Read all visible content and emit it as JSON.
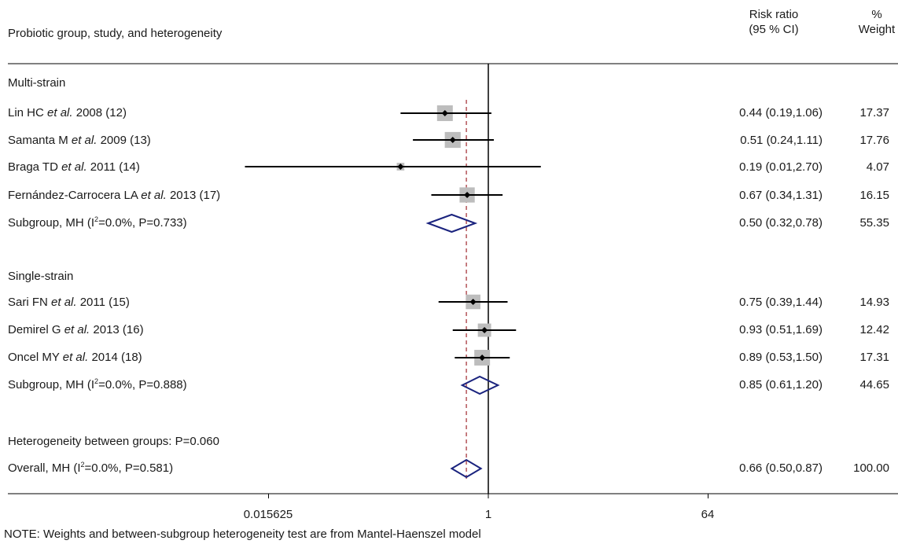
{
  "header": {
    "study_col": "Probiotic group, study, and heterogeneity",
    "rr_col_line1": "Risk ratio",
    "rr_col_line2": "(95 % CI)",
    "wt_col_line1": "%",
    "wt_col_line2": "Weight"
  },
  "groups": [
    {
      "title": "Multi-strain",
      "studies": [
        {
          "pre": "Lin HC ",
          "post": " 2008 (12)",
          "ci": "0.44 (0.19,1.06)",
          "weight": "17.37"
        },
        {
          "pre": "Samanta M ",
          "post": " 2009 (13)",
          "ci": "0.51 (0.24,1.11)",
          "weight": "17.76"
        },
        {
          "pre": "Braga TD ",
          "post": " 2011 (14)",
          "ci": "0.19 (0.01,2.70)",
          "weight": "4.07"
        },
        {
          "pre": "Fernández-Carrocera LA ",
          "post": " 2013 (17)",
          "ci": "0.67 (0.34,1.31)",
          "weight": "16.15"
        }
      ],
      "subgroup": {
        "pre": "Subgroup, MH (I",
        "post": "=0.0%, P=0.733)",
        "ci": "0.50 (0.32,0.78)",
        "weight": "55.35"
      }
    },
    {
      "title": "Single-strain",
      "studies": [
        {
          "pre": "Sari FN ",
          "post": " 2011 (15)",
          "ci": "0.75 (0.39,1.44)",
          "weight": "14.93"
        },
        {
          "pre": "Demirel G ",
          "post": " 2013 (16)",
          "ci": "0.93 (0.51,1.69)",
          "weight": "12.42"
        },
        {
          "pre": "Oncel MY ",
          "post": " 2014 (18)",
          "ci": "0.89 (0.53,1.50)",
          "weight": "17.31"
        }
      ],
      "subgroup": {
        "pre": "Subgroup, MH (I",
        "post": "=0.0%, P=0.888)",
        "ci": "0.85 (0.61,1.20)",
        "weight": "44.65"
      }
    }
  ],
  "etal": "et al.",
  "sup2": "2",
  "between": "Heterogeneity between groups: P=0.060",
  "overall": {
    "pre": "Overall, MH (I",
    "post": "=0.0%, P=0.581)",
    "ci": "0.66 (0.50,0.87)",
    "weight": "100.00"
  },
  "note": "NOTE: Weights and between-subgroup heterogeneity test are from Mantel-Haenszel model",
  "colors": {
    "axis": "#000000",
    "ci_line": "#000000",
    "weight_box": "#bdbdbd",
    "point": "#000000",
    "diamond": "#1a237e",
    "overall_line": "#a0282e"
  },
  "chart_data": {
    "type": "forest",
    "x_scale": "log",
    "xticks": [
      "0.015625",
      "1",
      "64"
    ],
    "xtick_values": [
      0.015625,
      1,
      64
    ],
    "null_line": 1,
    "overall_line": 0.66,
    "studies": [
      {
        "group": "Multi-strain",
        "rr": 0.44,
        "lo": 0.19,
        "hi": 1.06,
        "weight": 17.37
      },
      {
        "group": "Multi-strain",
        "rr": 0.51,
        "lo": 0.24,
        "hi": 1.11,
        "weight": 17.76
      },
      {
        "group": "Multi-strain",
        "rr": 0.19,
        "lo": 0.01,
        "hi": 2.7,
        "weight": 4.07
      },
      {
        "group": "Multi-strain",
        "rr": 0.67,
        "lo": 0.34,
        "hi": 1.31,
        "weight": 16.15
      },
      {
        "group": "Single-strain",
        "rr": 0.75,
        "lo": 0.39,
        "hi": 1.44,
        "weight": 14.93
      },
      {
        "group": "Single-strain",
        "rr": 0.93,
        "lo": 0.51,
        "hi": 1.69,
        "weight": 12.42
      },
      {
        "group": "Single-strain",
        "rr": 0.89,
        "lo": 0.53,
        "hi": 1.5,
        "weight": 17.31
      }
    ],
    "summaries": [
      {
        "label": "Subgroup Multi-strain",
        "rr": 0.5,
        "lo": 0.32,
        "hi": 0.78,
        "weight": 55.35
      },
      {
        "label": "Subgroup Single-strain",
        "rr": 0.85,
        "lo": 0.61,
        "hi": 1.2,
        "weight": 44.65
      },
      {
        "label": "Overall",
        "rr": 0.66,
        "lo": 0.5,
        "hi": 0.87,
        "weight": 100.0
      }
    ]
  }
}
